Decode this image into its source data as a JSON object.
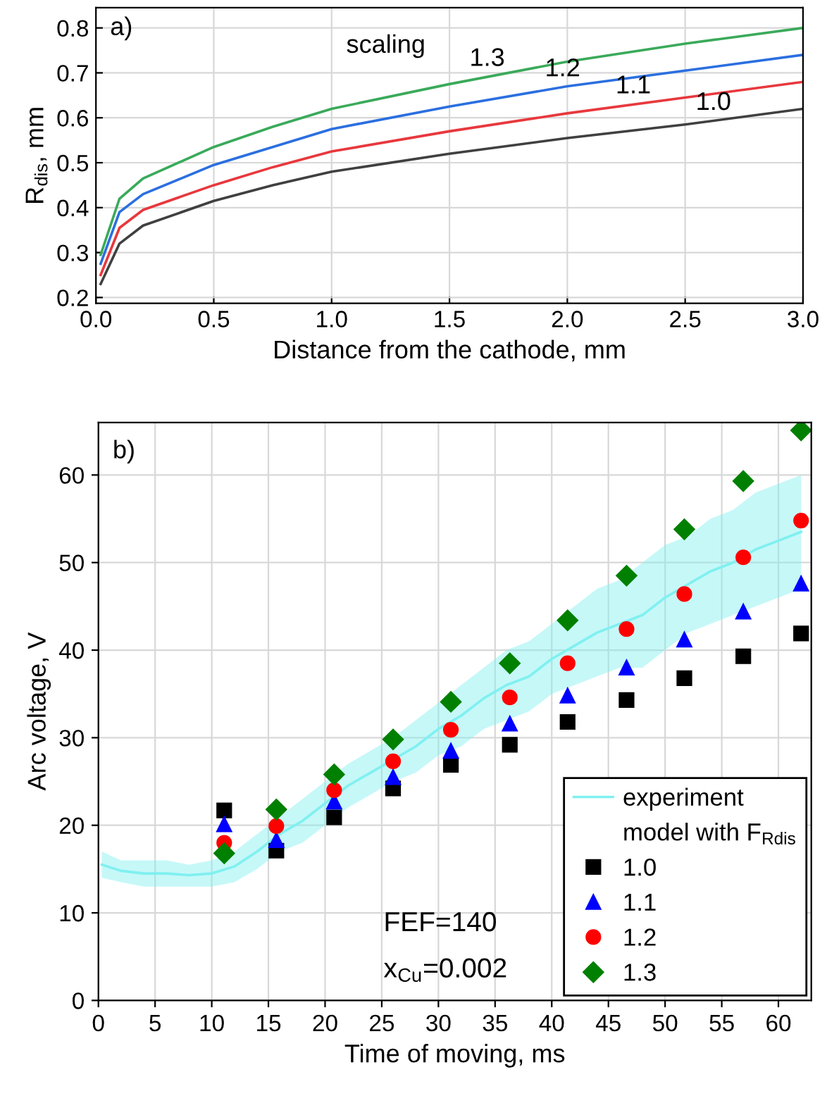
{
  "chart_data": [
    {
      "type": "line",
      "xlabel": "Distance from the cathode, mm",
      "ylabel": "R$_{dis}$, mm",
      "x": [
        0.02,
        0.1,
        0.2,
        0.5,
        0.75,
        1.0,
        1.5,
        2.0,
        2.5,
        3.0
      ],
      "series": [
        {
          "color": "#404040",
          "values": [
            0.23,
            0.32,
            0.36,
            0.415,
            0.45,
            0.48,
            0.52,
            0.555,
            0.585,
            0.62
          ]
        },
        {
          "color": "#e8383d",
          "values": [
            0.25,
            0.355,
            0.395,
            0.45,
            0.49,
            0.525,
            0.57,
            0.61,
            0.645,
            0.68
          ]
        },
        {
          "color": "#2b6fe0",
          "values": [
            0.275,
            0.39,
            0.43,
            0.495,
            0.535,
            0.575,
            0.625,
            0.67,
            0.705,
            0.74
          ]
        },
        {
          "color": "#3aaa5a",
          "values": [
            0.295,
            0.42,
            0.465,
            0.535,
            0.58,
            0.62,
            0.675,
            0.725,
            0.765,
            0.8
          ]
        }
      ],
      "annotations": [
        "a)",
        "scaling",
        {
          "text": "1.3",
          "x": 1.66,
          "y": 0.691
        },
        {
          "text": "1.2",
          "x": 1.98,
          "y": 0.668
        },
        {
          "text": "1.1",
          "x": 2.28,
          "y": 0.63
        },
        {
          "text": "1.0",
          "x": 2.62,
          "y": 0.593
        }
      ],
      "xlim": [
        0,
        3
      ],
      "ylim": [
        0.187,
        0.845
      ],
      "xticks": [
        {
          "value": 0,
          "label": "0.0"
        },
        0.5,
        {
          "value": 1,
          "label": "1.0"
        },
        1.5,
        {
          "value": 2,
          "label": "2.0"
        },
        2.5,
        {
          "value": 3,
          "label": "3.0"
        }
      ],
      "yticks": [
        0.2,
        0.3,
        0.4,
        0.5,
        0.6,
        0.7,
        0.8
      ],
      "grid": true,
      "line_style": "solid",
      "marker": "none"
    },
    {
      "type": "scatter",
      "xlabel": "Time of moving, ms",
      "ylabel": "Arc voltage, V",
      "legend_title": "model with F$_{Rdis}$",
      "x": [
        11.1,
        15.7,
        20.8,
        26.0,
        31.1,
        36.3,
        41.4,
        46.6,
        51.7,
        56.9,
        62.0
      ],
      "series": [
        {
          "name": "experiment",
          "type": "line",
          "color": "#80f0f0",
          "x": [
            0.3,
            2,
            4,
            6,
            8,
            10,
            12,
            14,
            16,
            18,
            20,
            22,
            24,
            26,
            28,
            30,
            32,
            34,
            36,
            38,
            40,
            42,
            44,
            46,
            48,
            50,
            52,
            54,
            56,
            58,
            60,
            62
          ],
          "values": [
            15.5,
            14.8,
            14.5,
            14.5,
            14.3,
            14.5,
            15.3,
            17,
            19,
            20.5,
            22.5,
            24.5,
            26,
            27.5,
            29,
            31,
            32.5,
            34.5,
            36,
            37,
            39,
            40.5,
            42,
            43,
            44,
            46,
            47.5,
            49,
            50,
            51.5,
            52.5,
            53.5
          ],
          "lower": [
            14,
            13.5,
            13,
            13,
            13,
            13,
            13.5,
            15,
            17,
            18,
            20,
            22,
            23.5,
            25,
            26,
            28,
            29,
            31,
            32,
            33,
            35,
            36,
            37,
            38,
            38,
            40,
            42,
            43,
            44,
            45,
            46,
            47
          ],
          "upper": [
            17,
            16,
            16,
            16,
            15.5,
            16,
            17,
            19,
            21,
            23,
            25,
            27,
            28.5,
            30,
            32,
            34,
            36,
            38,
            40,
            41,
            43,
            45,
            47,
            48,
            50,
            52,
            53,
            55,
            56,
            58,
            59,
            60
          ]
        },
        {
          "name": "1.0",
          "color": "#000000",
          "marker": "square",
          "values": [
            21.7,
            17.1,
            20.9,
            24.2,
            26.9,
            29.2,
            31.8,
            34.3,
            36.8,
            39.3,
            41.9
          ]
        },
        {
          "name": "1.1",
          "color": "#0000ff",
          "marker": "triangle",
          "values": [
            20.1,
            18.3,
            22.7,
            25.5,
            28.5,
            31.6,
            34.8,
            38.0,
            41.2,
            44.4,
            47.6
          ]
        },
        {
          "name": "1.2",
          "color": "#ff0000",
          "marker": "circle",
          "values": [
            18.0,
            19.9,
            24.0,
            27.3,
            30.9,
            34.6,
            38.5,
            42.4,
            46.4,
            50.6,
            54.8
          ]
        },
        {
          "name": "1.3",
          "color": "#008000",
          "marker": "diamond",
          "values": [
            16.8,
            21.8,
            25.8,
            29.8,
            34.1,
            38.5,
            43.4,
            48.5,
            53.8,
            59.3,
            65.1
          ]
        }
      ],
      "annotations": [
        "b)",
        "FEF=140",
        "x$_{Cu}$=0.002"
      ],
      "xlim": [
        0,
        62.9
      ],
      "ylim": [
        0,
        66
      ],
      "xticks": [
        0,
        5,
        10,
        15,
        20,
        25,
        30,
        35,
        40,
        45,
        50,
        55,
        60
      ],
      "yticks": [
        0,
        10,
        20,
        30,
        40,
        50,
        60
      ],
      "grid": true,
      "legend": "bottom right"
    }
  ]
}
